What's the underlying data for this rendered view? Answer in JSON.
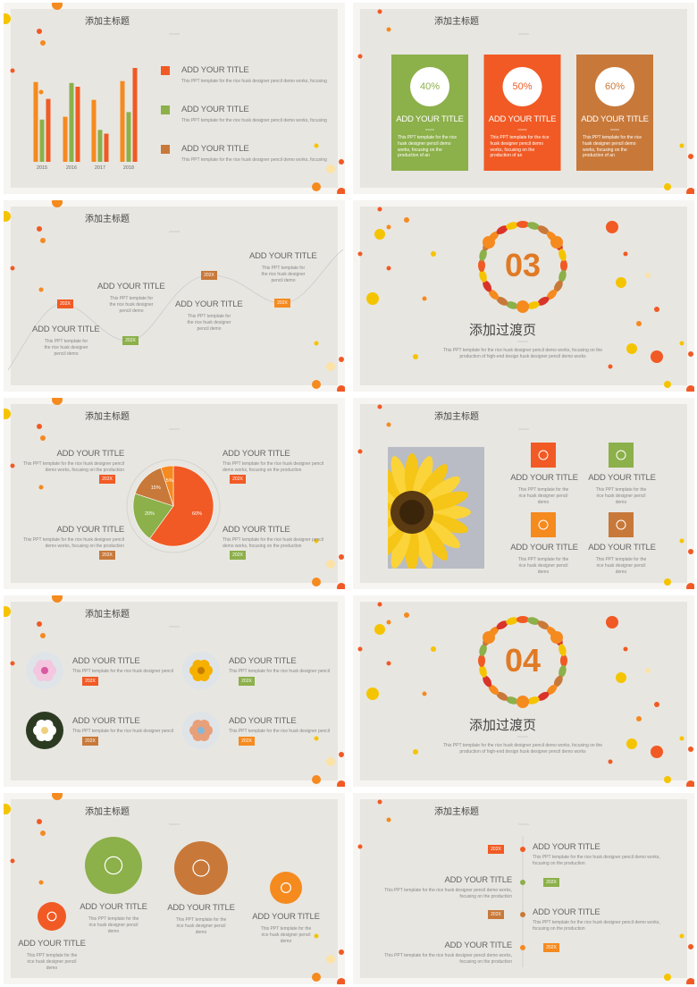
{
  "slides": [
    {
      "title": "添加主标题",
      "chart": {
        "type": "bar",
        "categories": [
          "2015",
          "2016",
          "2017",
          "2018"
        ],
        "series": [
          {
            "color": "#f58a1f",
            "values": [
              85,
              48,
              66,
              86
            ]
          },
          {
            "color": "#8cb04a",
            "values": [
              45,
              84,
              34,
              53
            ]
          },
          {
            "color": "#f15a24",
            "values": [
              67,
              80,
              30,
              100
            ]
          }
        ]
      },
      "items": [
        {
          "heading": "ADD YOUR TITLE",
          "text": "This PPT template for the rice husk designer pencil demo works, focusing",
          "color": "#f15a24"
        },
        {
          "heading": "ADD YOUR TITLE",
          "text": "This PPT template for the rice husk designer pencil demo works, focusing",
          "color": "#8cb04a"
        },
        {
          "heading": "ADD YOUR TITLE",
          "text": "This PPT template for the rice husk designer pencil demo works, focusing",
          "color": "#c8793a"
        }
      ]
    },
    {
      "title": "添加主标题",
      "items": [
        {
          "label": "40%",
          "heading": "ADD YOUR TITLE",
          "text": "This PPT template for the rice husk designer pencil demo works, focusing on the production of an",
          "color": "#8cb04a"
        },
        {
          "label": "50%",
          "heading": "ADD YOUR TITLE",
          "text": "This PPT template for the rice husk designer pencil demo works, focusing on the production of an",
          "color": "#f15a24"
        },
        {
          "label": "60%",
          "heading": "ADD YOUR TITLE",
          "text": "This PPT template for the rice husk designer pencil demo works, focusing on the production of an",
          "color": "#c8793a"
        }
      ]
    },
    {
      "title": "添加主标题",
      "items": [
        {
          "heading": "ADD YOUR TITLE",
          "text": "This PPT template for the rice husk designer pencil demo",
          "badge": "202X",
          "color": "#f15a24"
        },
        {
          "heading": "ADD YOUR TITLE",
          "text": "This PPT template for the rice husk designer pencil demo",
          "badge": "202X",
          "color": "#8cb04a"
        },
        {
          "heading": "ADD YOUR TITLE",
          "text": "This PPT template for the rice husk designer pencil demo",
          "badge": "202X",
          "color": "#c8793a"
        },
        {
          "heading": "ADD YOUR TITLE",
          "text": "This PPT template for the rice husk designer pencil demo",
          "badge": "202X",
          "color": "#f58a1f"
        }
      ]
    },
    {
      "number": "03",
      "title": "添加过渡页",
      "text": "This PPT template for the rice husk designer pencil demo works, focusing on the production of high-end design husk designer pencil demo works"
    },
    {
      "title": "添加主标题",
      "chart": {
        "type": "pie",
        "values": [
          60,
          20,
          15,
          5
        ],
        "value_labels": [
          "60%",
          "20%",
          "15%",
          "5%"
        ],
        "colors": [
          "#f15a24",
          "#8cb04a",
          "#c8793a",
          "#f58a1f"
        ]
      },
      "items": [
        {
          "heading": "ADD YOUR TITLE",
          "text": "This PPT template for the rice husk designer pencil demo works, focusing on the production",
          "badge": "202X",
          "color": "#f15a24"
        },
        {
          "heading": "ADD YOUR TITLE",
          "text": "This PPT template for the rice husk designer pencil demo works, focusing on the production",
          "badge": "202X",
          "color": "#f15a24"
        },
        {
          "heading": "ADD YOUR TITLE",
          "text": "This PPT template for the rice husk designer pencil demo works, focusing on the production",
          "badge": "202X",
          "color": "#c8793a"
        },
        {
          "heading": "ADD YOUR TITLE",
          "text": "This PPT template for the rice husk designer pencil demo works, focusing on the production",
          "badge": "202X",
          "color": "#8cb04a"
        }
      ]
    },
    {
      "title": "添加主标题",
      "items": [
        {
          "heading": "ADD YOUR TITLE",
          "text": "This PPT template for the rice husk designer pencil demo",
          "color": "#f15a24"
        },
        {
          "heading": "ADD YOUR TITLE",
          "text": "This PPT template for the rice husk designer pencil demo",
          "color": "#8cb04a"
        },
        {
          "heading": "ADD YOUR TITLE",
          "text": "This PPT template for the rice husk designer pencil demo",
          "color": "#f58a1f"
        },
        {
          "heading": "ADD YOUR TITLE",
          "text": "This PPT template for the rice husk designer pencil demo",
          "color": "#c8793a"
        }
      ]
    },
    {
      "title": "添加主标题",
      "items": [
        {
          "heading": "ADD YOUR TITLE",
          "text": "This PPT template for the rice husk designer pencil",
          "badge": "202X",
          "color": "#f15a24"
        },
        {
          "heading": "ADD YOUR TITLE",
          "text": "This PPT template for the rice husk designer pencil",
          "badge": "202X",
          "color": "#8cb04a"
        },
        {
          "heading": "ADD YOUR TITLE",
          "text": "This PPT template for the rice husk designer pencil",
          "badge": "202X",
          "color": "#c8793a"
        },
        {
          "heading": "ADD YOUR TITLE",
          "text": "This PPT template for the rice husk designer pencil",
          "badge": "202X",
          "color": "#f58a1f"
        }
      ]
    },
    {
      "number": "04",
      "title": "添加过渡页",
      "text": "This PPT template for the rice husk designer pencil demo works, focusing on the production of high-end design husk designer pencil demo works"
    },
    {
      "title": "添加主标题",
      "items": [
        {
          "heading": "ADD YOUR TITLE",
          "text": "This PPT template for the rice husk designer pencil demo",
          "color": "#f15a24"
        },
        {
          "heading": "ADD YOUR TITLE",
          "text": "This PPT template for the rice husk designer pencil demo",
          "color": "#8cb04a"
        },
        {
          "heading": "ADD YOUR TITLE",
          "text": "This PPT template for the rice husk designer pencil demo",
          "color": "#c8793a"
        },
        {
          "heading": "ADD YOUR TITLE",
          "text": "This PPT template for the rice husk designer pencil demo",
          "color": "#f58a1f"
        }
      ]
    },
    {
      "title": "添加主标题",
      "items": [
        {
          "heading": "ADD YOUR TITLE",
          "text": "This PPT template for the rice husk designer pencil demo works, focusing on the production",
          "badge": "202X",
          "color": "#f15a24"
        },
        {
          "heading": "ADD YOUR TITLE",
          "text": "This PPT template for the rice husk designer pencil demo works, focusing on the production",
          "badge": "202X",
          "color": "#8cb04a"
        },
        {
          "heading": "ADD YOUR TITLE",
          "text": "This PPT template for the rice husk designer pencil demo works, focusing on the production",
          "badge": "202X",
          "color": "#c8793a"
        },
        {
          "heading": "ADD YOUR TITLE",
          "text": "This PPT template for the rice husk designer pencil demo works, focusing on the production",
          "badge": "202X",
          "color": "#f58a1f"
        }
      ]
    }
  ]
}
